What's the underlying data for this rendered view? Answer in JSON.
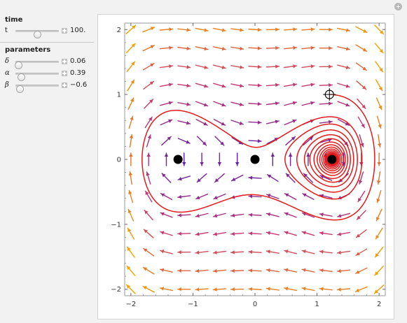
{
  "controls": {
    "time_header": "time",
    "time": {
      "label": "t",
      "value": 100,
      "display": "100.",
      "min": 0,
      "max": 200
    },
    "parameters_header": "parameters",
    "params": [
      {
        "symbol": "δ",
        "display": "0.06",
        "value": 0.06,
        "min": 0,
        "max": 1
      },
      {
        "symbol": "α",
        "display": "0.39",
        "value": 0.39,
        "min": 0,
        "max": 3
      },
      {
        "symbol": "β",
        "display": "−0.6",
        "value": -0.6,
        "min": -1,
        "max": 3
      }
    ]
  },
  "plot": {
    "x_ticks": [
      "−2",
      "−1",
      "0",
      "1",
      "2"
    ],
    "y_ticks": [
      "−2",
      "−1",
      "0",
      "1",
      "2"
    ],
    "xlim": [
      -2.1,
      2.1
    ],
    "ylim": [
      -2.1,
      2.1
    ],
    "equilibria": [
      {
        "x": -1.24,
        "y": 0
      },
      {
        "x": 0,
        "y": 0
      },
      {
        "x": 1.24,
        "y": 0
      }
    ],
    "start_point": {
      "x": 1.2,
      "y": 1.0
    },
    "colors": {
      "trajectory": "#e41a1c",
      "point": "#000000",
      "arrow_slow": "#5a1fa6",
      "arrow_fast": "#f5a000"
    }
  }
}
